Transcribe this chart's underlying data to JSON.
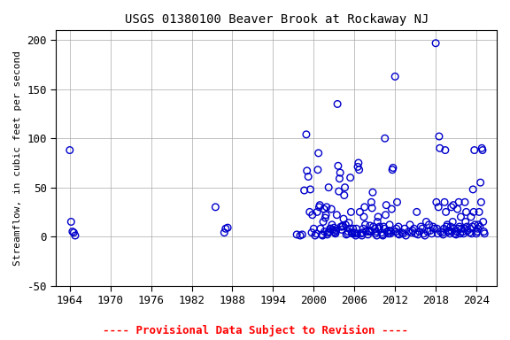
{
  "title": "USGS 01380100 Beaver Brook at Rockaway NJ",
  "ylabel": "Streamflow, in cubic feet per second",
  "xlabel_note": "---- Provisional Data Subject to Revision ----",
  "xlim": [
    1962,
    2027
  ],
  "ylim": [
    -50,
    210
  ],
  "yticks": [
    -50,
    0,
    50,
    100,
    150,
    200
  ],
  "xticks": [
    1964,
    1970,
    1976,
    1982,
    1988,
    1994,
    2000,
    2006,
    2012,
    2018,
    2024
  ],
  "marker_color": "#0000CC",
  "background_color": "#ffffff",
  "grid_color": "#aaaaaa",
  "x": [
    1964.0,
    1964.2,
    1964.4,
    1964.6,
    1964.8,
    1985.5,
    1986.8,
    1987.0,
    1987.3,
    1997.5,
    1998.0,
    1998.3,
    1998.6,
    1998.9,
    1999.0,
    1999.2,
    1999.4,
    1999.5,
    1999.7,
    1999.8,
    2000.0,
    2000.2,
    2000.4,
    2000.5,
    2000.6,
    2000.7,
    2000.8,
    2000.9,
    2001.0,
    2001.2,
    2001.3,
    2001.4,
    2001.5,
    2001.6,
    2001.7,
    2001.8,
    2001.9,
    2002.0,
    2002.1,
    2002.2,
    2002.3,
    2002.4,
    2002.5,
    2002.6,
    2002.7,
    2002.8,
    2002.9,
    2003.0,
    2003.1,
    2003.2,
    2003.3,
    2003.4,
    2003.5,
    2003.6,
    2003.7,
    2003.8,
    2003.9,
    2004.0,
    2004.1,
    2004.2,
    2004.3,
    2004.4,
    2004.5,
    2004.6,
    2004.7,
    2004.8,
    2005.0,
    2005.1,
    2005.2,
    2005.3,
    2005.4,
    2005.5,
    2005.6,
    2005.7,
    2005.8,
    2006.0,
    2006.1,
    2006.2,
    2006.3,
    2006.4,
    2006.5,
    2006.6,
    2006.7,
    2006.8,
    2007.0,
    2007.1,
    2007.2,
    2007.3,
    2007.4,
    2007.5,
    2007.6,
    2007.7,
    2008.0,
    2008.1,
    2008.2,
    2008.3,
    2008.4,
    2008.5,
    2008.6,
    2008.7,
    2008.8,
    2009.0,
    2009.1,
    2009.2,
    2009.3,
    2009.4,
    2009.5,
    2009.6,
    2009.7,
    2010.0,
    2010.1,
    2010.2,
    2010.3,
    2010.4,
    2010.5,
    2010.6,
    2010.7,
    2010.8,
    2011.0,
    2011.1,
    2011.2,
    2011.3,
    2011.4,
    2011.5,
    2011.6,
    2011.7,
    2012.0,
    2012.1,
    2012.2,
    2012.3,
    2012.4,
    2012.5,
    2012.6,
    2013.0,
    2013.2,
    2013.4,
    2013.6,
    2014.0,
    2014.2,
    2014.4,
    2014.6,
    2014.8,
    2015.0,
    2015.2,
    2015.4,
    2015.6,
    2015.8,
    2016.0,
    2016.2,
    2016.4,
    2016.6,
    2016.8,
    2017.0,
    2017.2,
    2017.4,
    2017.6,
    2017.8,
    2018.0,
    2018.1,
    2018.2,
    2018.3,
    2018.4,
    2018.5,
    2018.6,
    2018.7,
    2019.0,
    2019.1,
    2019.2,
    2019.3,
    2019.4,
    2019.5,
    2019.6,
    2019.7,
    2019.8,
    2020.0,
    2020.1,
    2020.2,
    2020.3,
    2020.4,
    2020.5,
    2020.6,
    2020.7,
    2020.8,
    2021.0,
    2021.1,
    2021.2,
    2021.3,
    2021.4,
    2021.5,
    2021.6,
    2021.7,
    2021.8,
    2022.0,
    2022.1,
    2022.2,
    2022.3,
    2022.4,
    2022.5,
    2022.6,
    2022.7,
    2023.0,
    2023.1,
    2023.2,
    2023.3,
    2023.4,
    2023.5,
    2023.6,
    2023.7,
    2023.8,
    2024.0,
    2024.1,
    2024.2,
    2024.3,
    2024.4,
    2024.5,
    2024.6,
    2024.7,
    2024.8,
    2024.9,
    2025.0,
    2025.1,
    2025.2
  ],
  "y": [
    88,
    15,
    5,
    4,
    1,
    30,
    4,
    8,
    9,
    2,
    1,
    2,
    47,
    104,
    67,
    61,
    25,
    48,
    4,
    22,
    8,
    1,
    3,
    25,
    68,
    85,
    30,
    32,
    8,
    2,
    1,
    15,
    28,
    5,
    19,
    22,
    30,
    2,
    4,
    50,
    5,
    8,
    8,
    28,
    12,
    7,
    5,
    9,
    4,
    3,
    6,
    22,
    135,
    72,
    46,
    59,
    65,
    10,
    7,
    10,
    11,
    18,
    42,
    50,
    12,
    2,
    3,
    5,
    14,
    8,
    60,
    25,
    4,
    3,
    8,
    4,
    3,
    1,
    8,
    3,
    71,
    75,
    68,
    25,
    3,
    1,
    4,
    8,
    20,
    30,
    12,
    5,
    2,
    5,
    6,
    11,
    5,
    35,
    29,
    45,
    10,
    8,
    3,
    5,
    1,
    15,
    20,
    8,
    10,
    4,
    2,
    1,
    10,
    8,
    100,
    22,
    32,
    5,
    3,
    6,
    12,
    3,
    5,
    28,
    68,
    70,
    163,
    5,
    8,
    35,
    3,
    10,
    2,
    4,
    3,
    8,
    1,
    5,
    12,
    4,
    6,
    8,
    3,
    25,
    2,
    5,
    10,
    8,
    3,
    1,
    15,
    5,
    12,
    6,
    3,
    10,
    8,
    197,
    35,
    8,
    3,
    30,
    102,
    90,
    5,
    4,
    2,
    8,
    35,
    88,
    25,
    10,
    12,
    5,
    6,
    3,
    10,
    30,
    5,
    15,
    32,
    8,
    3,
    2,
    5,
    28,
    8,
    35,
    10,
    3,
    20,
    8,
    5,
    3,
    8,
    35,
    15,
    25,
    10,
    6,
    4,
    8,
    20,
    3,
    10,
    48,
    25,
    88,
    12,
    3,
    5,
    8,
    12,
    25,
    10,
    55,
    35,
    90,
    88,
    15,
    5,
    3
  ]
}
